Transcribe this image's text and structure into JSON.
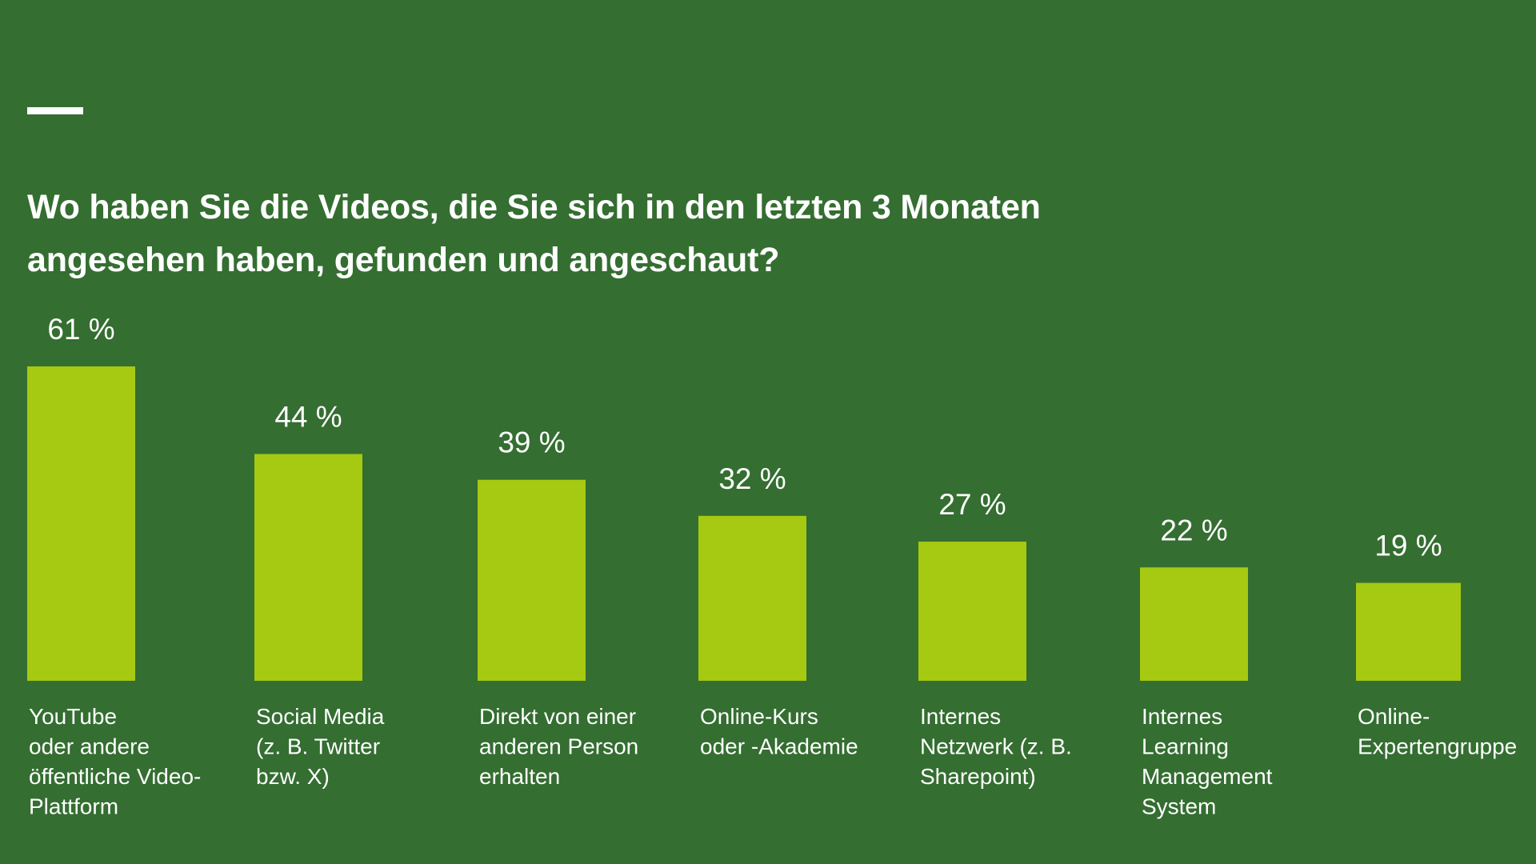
{
  "chart_data": {
    "type": "bar",
    "title": "Wo haben Sie die Videos, die Sie sich in den letzten 3 Monaten angesehen haben, gefunden und angeschaut?",
    "title_lines": [
      "Wo haben Sie die Videos, die Sie sich in den letzten 3 Monaten",
      "angesehen haben, gefunden und angeschaut?"
    ],
    "unit": "%",
    "categories": [
      "YouTube oder andere öffentliche Video-Plattform",
      "Social Media (z. B. Twitter bzw. X)",
      "Direkt von einer anderen Person erhalten",
      "Online-Kurs oder -Akademie",
      "Internes Netzwerk (z. B. Sharepoint)",
      "Internes Learning Management System",
      "Online-Expertengruppe"
    ],
    "category_lines": [
      [
        "YouTube",
        "oder andere",
        "öffentliche Video-",
        "Plattform"
      ],
      [
        "Social Media",
        "(z. B. Twitter",
        "bzw. X)"
      ],
      [
        "Direkt von einer",
        "anderen Person",
        "erhalten"
      ],
      [
        "Online-Kurs",
        "oder -Akademie"
      ],
      [
        "Internes",
        "Netzwerk (z. B.",
        "Sharepoint)"
      ],
      [
        "Internes",
        "Learning",
        "Management",
        "System"
      ],
      [
        "Online-",
        "Expertengruppe"
      ]
    ],
    "values": [
      61,
      44,
      39,
      32,
      27,
      22,
      19
    ],
    "value_labels": [
      "61 %",
      "44 %",
      "39 %",
      "32 %",
      "27 %",
      "22 %",
      "19 %"
    ],
    "xlabel": "",
    "ylabel": "",
    "ylim": [
      0,
      61
    ],
    "grid": false,
    "legend": "none"
  },
  "colors": {
    "background": "#346e31",
    "bar": "#a6c912",
    "text": "#ffffff"
  }
}
